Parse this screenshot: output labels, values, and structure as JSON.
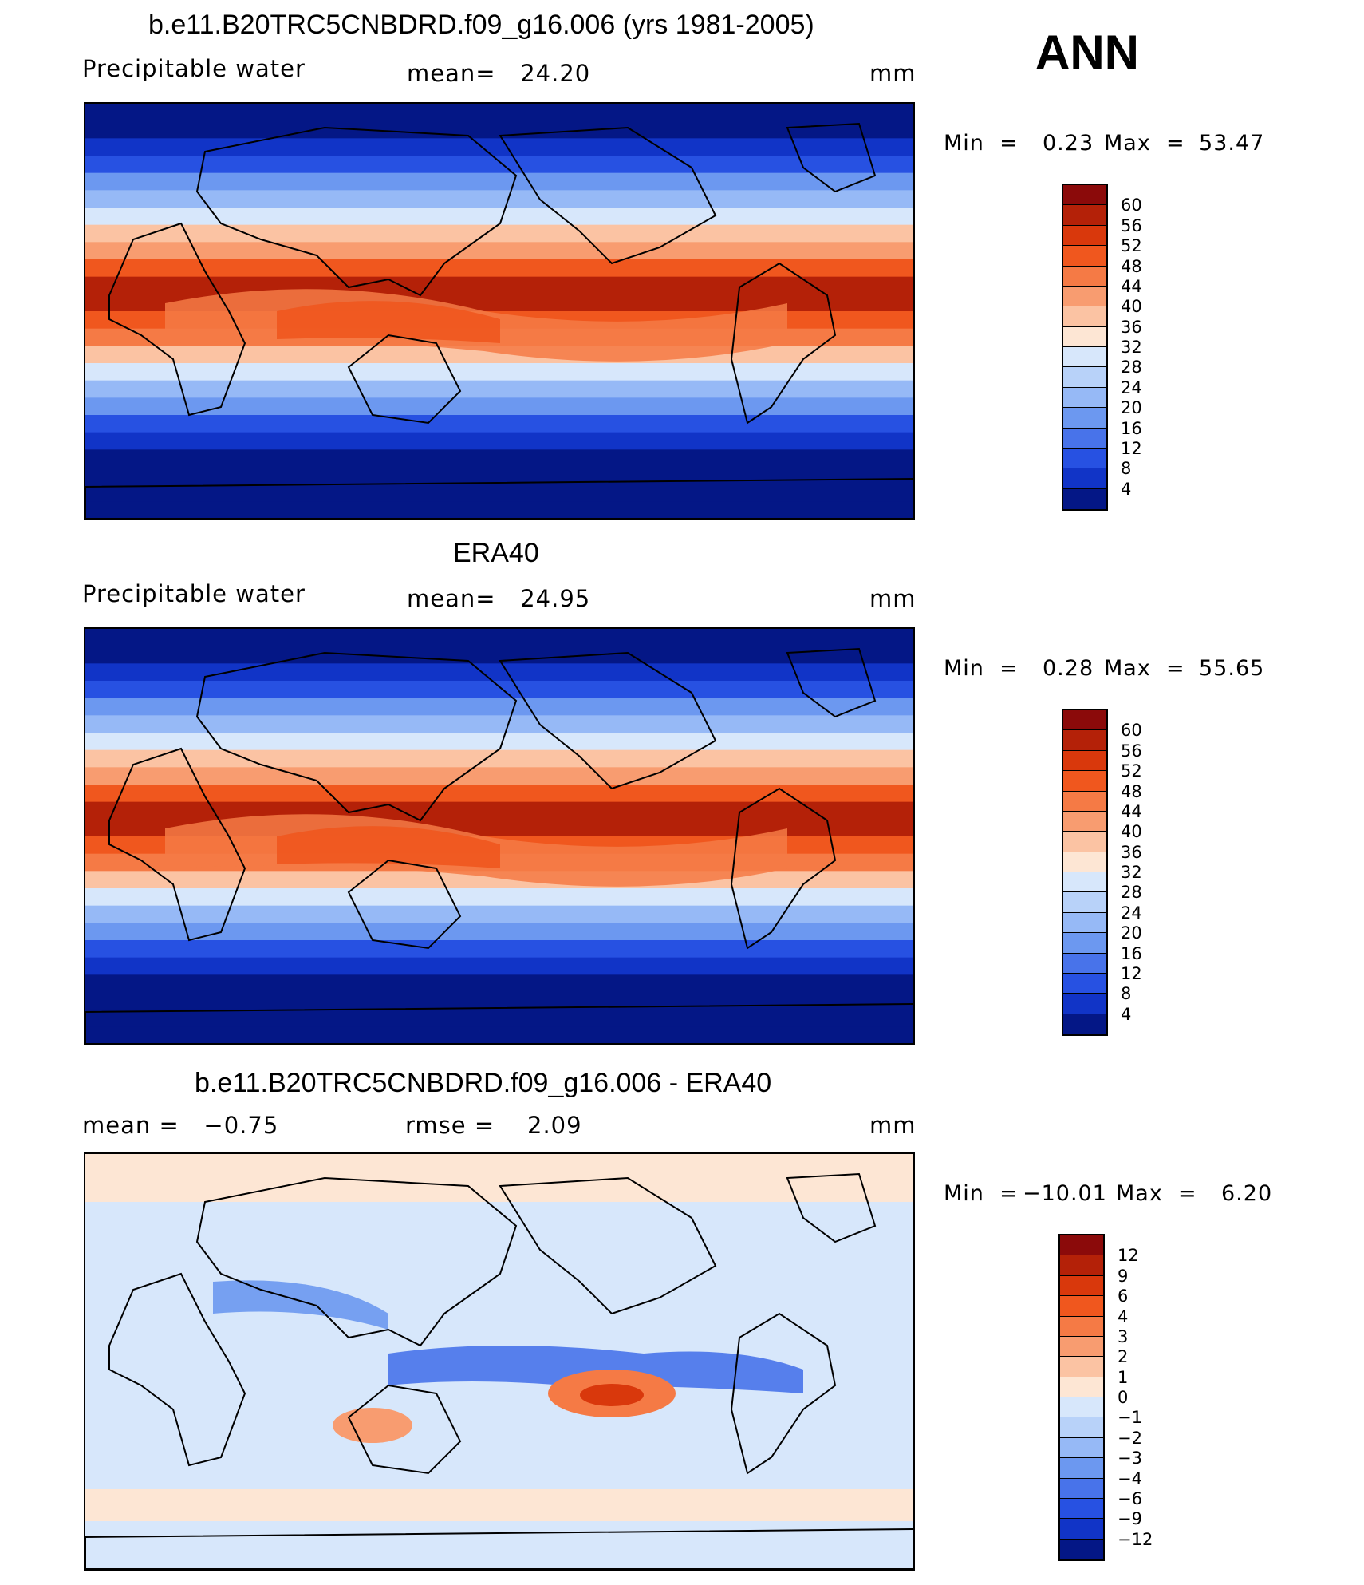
{
  "season_label": "ANN",
  "chart_data": [
    {
      "type": "heatmap",
      "title": "b.e11.B20TRC5CNBDRD.f09_g16.006 (yrs 1981-2005)",
      "variable_label": "Precipitable water",
      "mean_text": "mean=   24.20",
      "units": "mm",
      "min_text": "Min  =",
      "min_value": "0.23",
      "max_text": "Max  =",
      "max_value": "53.47",
      "colorbar": {
        "levels": [
          "60",
          "56",
          "52",
          "48",
          "44",
          "40",
          "36",
          "32",
          "28",
          "24",
          "20",
          "16",
          "12",
          "8",
          "4"
        ],
        "colors": [
          "#8b0a0a",
          "#b42108",
          "#d9380c",
          "#f0571e",
          "#f57a45",
          "#f89c70",
          "#fbc3a3",
          "#fde6d4",
          "#d7e7fb",
          "#b8d2f9",
          "#96b9f6",
          "#6c98f0",
          "#4873ea",
          "#2751e2",
          "#1134c7",
          "#041786"
        ]
      },
      "field_kind": "absolute"
    },
    {
      "type": "heatmap",
      "title": "ERA40",
      "variable_label": "Precipitable water",
      "mean_text": "mean=   24.95",
      "units": "mm",
      "min_text": "Min  =",
      "min_value": "0.28",
      "max_text": "Max  =",
      "max_value": "55.65",
      "colorbar": {
        "levels": [
          "60",
          "56",
          "52",
          "48",
          "44",
          "40",
          "36",
          "32",
          "28",
          "24",
          "20",
          "16",
          "12",
          "8",
          "4"
        ],
        "colors": [
          "#8b0a0a",
          "#b42108",
          "#d9380c",
          "#f0571e",
          "#f57a45",
          "#f89c70",
          "#fbc3a3",
          "#fde6d4",
          "#d7e7fb",
          "#b8d2f9",
          "#96b9f6",
          "#6c98f0",
          "#4873ea",
          "#2751e2",
          "#1134c7",
          "#041786"
        ]
      },
      "field_kind": "absolute"
    },
    {
      "type": "heatmap",
      "title": "b.e11.B20TRC5CNBDRD.f09_g16.006 - ERA40",
      "mean_text": "mean =   −0.75",
      "rmse_text": "rmse =    2.09",
      "units": "mm",
      "min_text": "Min  =",
      "min_value": "−10.01",
      "max_text": "Max  =",
      "max_value": "6.20",
      "colorbar": {
        "levels": [
          "12",
          "9",
          "6",
          "4",
          "3",
          "2",
          "1",
          "0",
          "−1",
          "−2",
          "−3",
          "−4",
          "−6",
          "−9",
          "−12"
        ],
        "colors": [
          "#8b0a0a",
          "#b42108",
          "#d9380c",
          "#f0571e",
          "#f57a45",
          "#f89c70",
          "#fbc3a3",
          "#fde6d4",
          "#d7e7fb",
          "#b8d2f9",
          "#96b9f6",
          "#6c98f0",
          "#4873ea",
          "#2751e2",
          "#1134c7",
          "#041786"
        ]
      },
      "field_kind": "difference"
    }
  ]
}
